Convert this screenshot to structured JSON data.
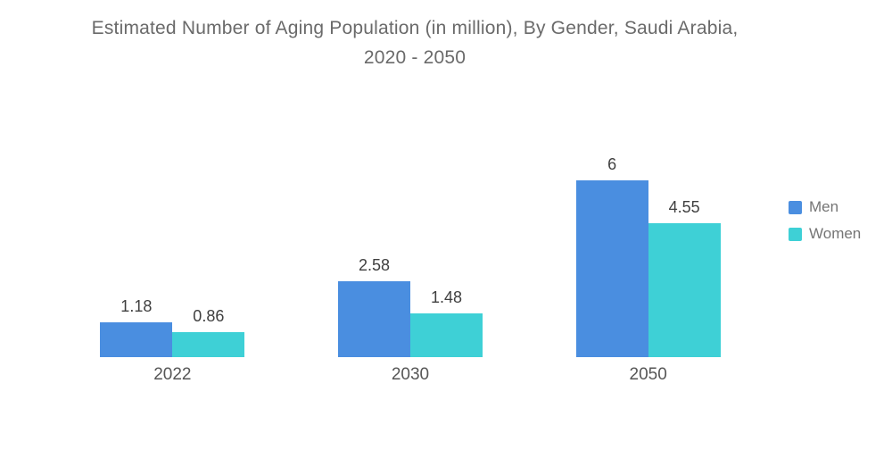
{
  "chart": {
    "title": "Estimated Number of Aging Population (in million), By Gender, Saudi Arabia, 2020 - 2050"
  },
  "chart_data": {
    "type": "bar",
    "title": "Estimated Number of Aging Population (in million), By Gender, Saudi Arabia, 2020 - 2050",
    "categories": [
      "2022",
      "2030",
      "2050"
    ],
    "series": [
      {
        "name": "Men",
        "color": "#4a8ee0",
        "values": [
          1.18,
          2.58,
          6
        ]
      },
      {
        "name": "Women",
        "color": "#3ed0d6",
        "values": [
          0.86,
          1.48,
          4.55
        ]
      }
    ],
    "xlabel": "",
    "ylabel": "",
    "ylim": [
      0,
      6.6
    ],
    "grid": false,
    "axis_lines": false,
    "value_labels": true,
    "legend_position": "right"
  },
  "colors": {
    "background": "#ffffff",
    "title_text": "#6a6a6a",
    "value_label_text": "#3f3f3f",
    "category_label_text": "#565656",
    "legend_text": "#757575",
    "men_bar": "#4a8ee0",
    "women_bar": "#3ed0d6"
  }
}
